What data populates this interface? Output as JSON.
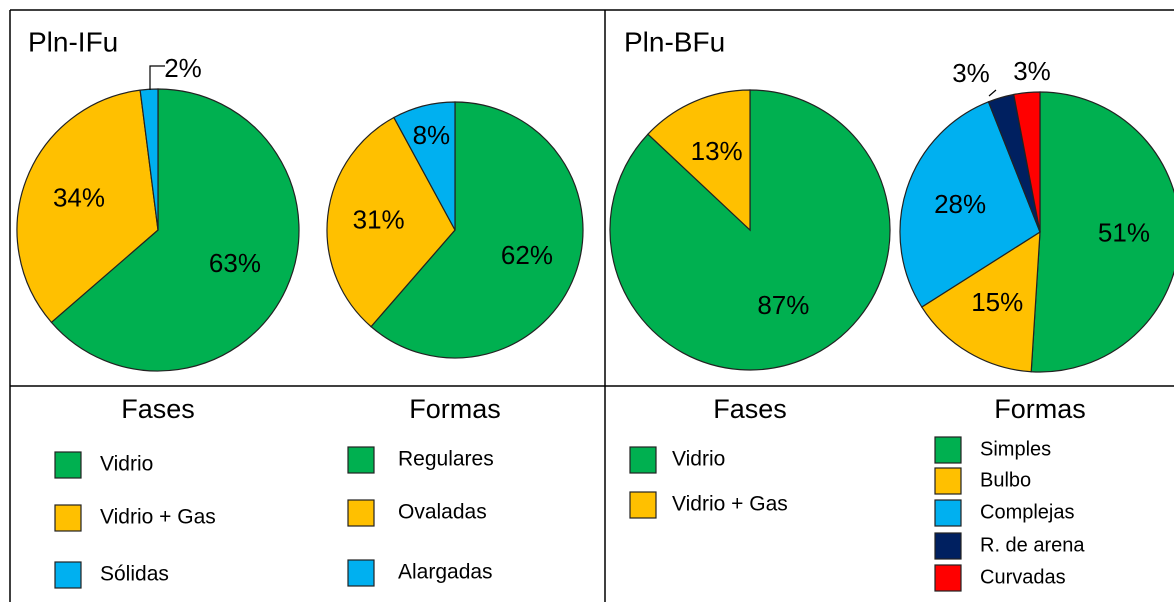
{
  "panels": [
    "Pln-IFu",
    "Pln-BFu"
  ],
  "chart_data": [
    {
      "type": "pie",
      "legend_title": "Fases",
      "categories": [
        "Vidrio",
        "Vidrio + Gas",
        "Sólidas"
      ],
      "values": [
        63,
        34,
        2
      ],
      "value_labels": [
        "63%",
        "34%",
        "2%"
      ],
      "colors": [
        "#00b050",
        "#ffc000",
        "#00b0f0"
      ]
    },
    {
      "type": "pie",
      "legend_title": "Formas",
      "categories": [
        "Regulares",
        "Ovaladas",
        "Alargadas"
      ],
      "values": [
        62,
        31,
        8
      ],
      "value_labels": [
        "62%",
        "31%",
        "8%"
      ],
      "colors": [
        "#00b050",
        "#ffc000",
        "#00b0f0"
      ]
    },
    {
      "type": "pie",
      "legend_title": "Fases",
      "categories": [
        "Vidrio",
        "Vidrio + Gas"
      ],
      "values": [
        87,
        13
      ],
      "value_labels": [
        "87%",
        "13%"
      ],
      "colors": [
        "#00b050",
        "#ffc000"
      ]
    },
    {
      "type": "pie",
      "legend_title": "Formas",
      "categories": [
        "Simples",
        "Bulbo",
        "Complejas",
        "R. de arena",
        "Curvadas"
      ],
      "values": [
        51,
        15,
        28,
        3,
        3
      ],
      "value_labels": [
        "51%",
        "15%",
        "28%",
        "3%",
        "3%"
      ],
      "colors": [
        "#00b050",
        "#ffc000",
        "#00b0f0",
        "#002060",
        "#ff0000"
      ]
    }
  ]
}
